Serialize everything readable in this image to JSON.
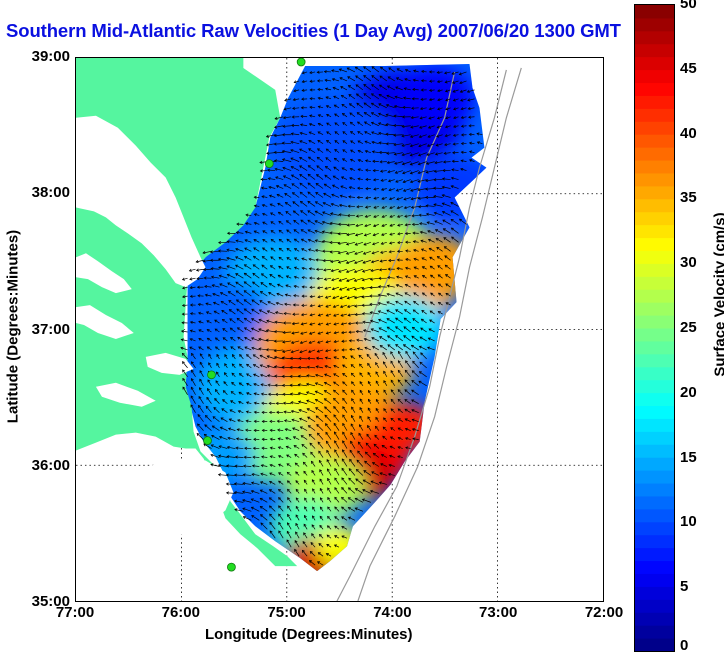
{
  "title": "Southern Mid-Atlantic Raw Velocities (1 Day Avg) 2007/06/20 1300 GMT",
  "xlabel": "Longitude (Degrees:Minutes)",
  "ylabel": "Latitude (Degrees:Minutes)",
  "map": {
    "lon_range": [
      -77,
      -72
    ],
    "lat_range": [
      35,
      39
    ],
    "lon_ticks": [
      "77:00",
      "76:00",
      "75:00",
      "74:00",
      "73:00",
      "72:00"
    ],
    "lat_ticks": [
      "39:00",
      "38:00",
      "37:00",
      "36:00",
      "35:00"
    ],
    "grid": "dotted",
    "land_color": "#55f59f",
    "station_color": "#22dd22"
  },
  "colorbar": {
    "label": "Surface Velocity (cm/s)",
    "range": [
      0,
      50
    ],
    "ticks": [
      "0",
      "5",
      "10",
      "15",
      "20",
      "25",
      "30",
      "35",
      "40",
      "45",
      "50"
    ],
    "colormap": "jet"
  }
}
